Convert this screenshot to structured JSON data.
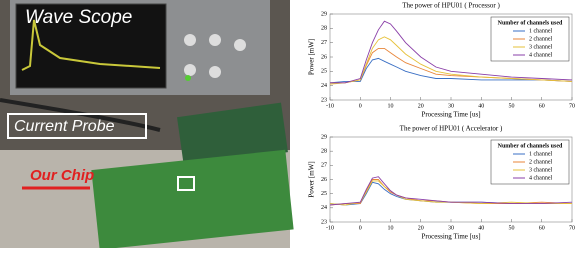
{
  "photo": {
    "labels": [
      "Wave Scope",
      "Current Probe",
      "Our Chip"
    ]
  },
  "chart_data": [
    {
      "type": "line",
      "title": "The power of HPU01 ( Processor )",
      "x_label": "Processing Time [us]",
      "y_label": "Power [mW]",
      "legend_title": "Number of channels used",
      "legend_position": "upper right",
      "x": [
        -10,
        -5,
        0,
        2,
        4,
        6,
        8,
        10,
        12,
        15,
        20,
        25,
        30,
        40,
        50,
        60,
        70
      ],
      "series": [
        {
          "name": "1 channel",
          "color": "#3a6fc4",
          "values": [
            24.2,
            24.3,
            24.3,
            25.2,
            25.8,
            25.9,
            25.7,
            25.5,
            25.3,
            25.0,
            24.7,
            24.5,
            24.5,
            24.4,
            24.4,
            24.4,
            24.3
          ]
        },
        {
          "name": "2 channel",
          "color": "#e8863a",
          "values": [
            24.2,
            24.2,
            24.4,
            25.4,
            26.3,
            26.6,
            26.6,
            26.3,
            26.0,
            25.6,
            25.2,
            24.8,
            24.7,
            24.6,
            24.5,
            24.4,
            24.3
          ]
        },
        {
          "name": "3 channel",
          "color": "#e6c13a",
          "values": [
            24.1,
            24.2,
            24.4,
            25.5,
            26.6,
            27.2,
            27.4,
            27.2,
            26.8,
            26.2,
            25.5,
            25.0,
            24.8,
            24.6,
            24.5,
            24.4,
            24.3
          ]
        },
        {
          "name": "4 channel",
          "color": "#8a3fa8",
          "values": [
            24.2,
            24.2,
            24.5,
            25.8,
            27.0,
            27.9,
            28.5,
            28.3,
            27.8,
            27.0,
            26.0,
            25.3,
            25.0,
            24.8,
            24.6,
            24.5,
            24.4
          ]
        }
      ],
      "xlim": [
        -10,
        70
      ],
      "xticks": [
        -10,
        0,
        10,
        20,
        30,
        40,
        50,
        60,
        70
      ],
      "ylim": [
        23,
        29
      ],
      "yticks": [
        23,
        24,
        25,
        26,
        27,
        28,
        29
      ]
    },
    {
      "type": "line",
      "title": "The power of HPU01 ( Accelerator )",
      "x_label": "Processing Time [us]",
      "y_label": "Power [mW]",
      "legend_title": "Number of channels used",
      "legend_position": "upper right",
      "x": [
        -10,
        -5,
        0,
        2,
        4,
        6,
        8,
        10,
        12,
        15,
        20,
        25,
        30,
        40,
        50,
        60,
        70
      ],
      "series": [
        {
          "name": "1 channel",
          "color": "#3a6fc4",
          "values": [
            24.3,
            24.2,
            24.3,
            25.0,
            25.8,
            25.7,
            25.3,
            25.0,
            24.8,
            24.6,
            24.5,
            24.4,
            24.4,
            24.4,
            24.3,
            24.3,
            24.3
          ]
        },
        {
          "name": "2 channel",
          "color": "#e8863a",
          "values": [
            24.2,
            24.3,
            24.3,
            25.2,
            26.0,
            26.0,
            25.5,
            25.1,
            24.9,
            24.7,
            24.5,
            24.5,
            24.4,
            24.3,
            24.3,
            24.4,
            24.3
          ]
        },
        {
          "name": "3 channel",
          "color": "#e6c13a",
          "values": [
            24.3,
            24.2,
            24.4,
            25.1,
            25.9,
            25.9,
            25.5,
            25.2,
            24.9,
            24.6,
            24.5,
            24.4,
            24.4,
            24.3,
            24.4,
            24.3,
            24.3
          ]
        },
        {
          "name": "4 channel",
          "color": "#8a3fa8",
          "values": [
            24.2,
            24.3,
            24.4,
            25.3,
            26.1,
            26.2,
            25.7,
            25.2,
            24.9,
            24.7,
            24.6,
            24.5,
            24.4,
            24.4,
            24.3,
            24.3,
            24.4
          ]
        }
      ],
      "xlim": [
        -10,
        70
      ],
      "xticks": [
        -10,
        0,
        10,
        20,
        30,
        40,
        50,
        60,
        70
      ],
      "ylim": [
        23,
        29
      ],
      "yticks": [
        23,
        24,
        25,
        26,
        27,
        28,
        29
      ]
    }
  ]
}
